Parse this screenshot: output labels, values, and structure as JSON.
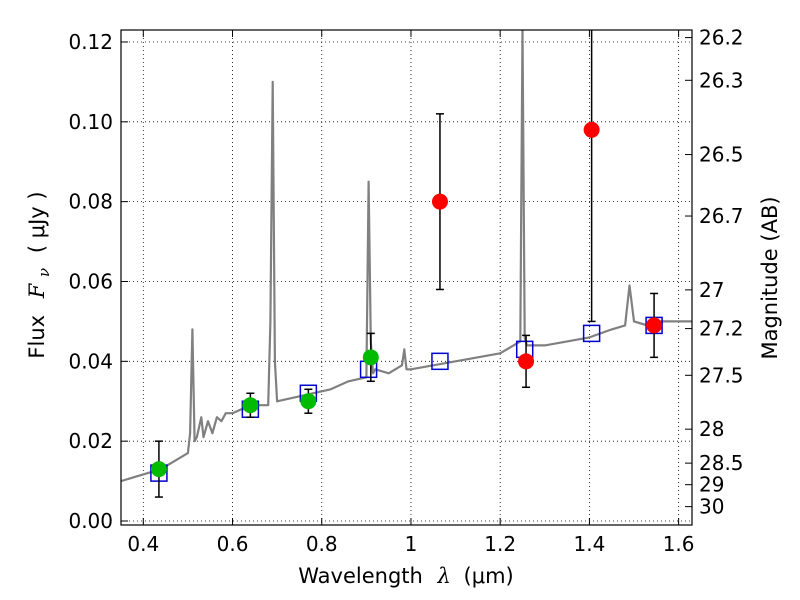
{
  "chart_data": {
    "type": "scatter",
    "xlabel": {
      "prefix": "Wavelength",
      "symbol": "λ",
      "unit": "(μm)"
    },
    "ylabel": {
      "prefix": "Flux",
      "symbol": "F",
      "subscript": "ν",
      "unit": "( μJy )"
    },
    "y2label": "Magnitude (AB)",
    "xlim": [
      0.35,
      1.63
    ],
    "ylim": [
      -0.001,
      0.123
    ],
    "grid": true,
    "x_ticks": [
      {
        "value": 0.4,
        "label": "0.4"
      },
      {
        "value": 0.6,
        "label": "0.6"
      },
      {
        "value": 0.8,
        "label": "0.8"
      },
      {
        "value": 1.0,
        "label": "1"
      },
      {
        "value": 1.2,
        "label": "1.2"
      },
      {
        "value": 1.4,
        "label": "1.4"
      },
      {
        "value": 1.6,
        "label": "1.6"
      }
    ],
    "y_ticks": [
      {
        "value": 0.0,
        "label": "0.00"
      },
      {
        "value": 0.02,
        "label": "0.02"
      },
      {
        "value": 0.04,
        "label": "0.04"
      },
      {
        "value": 0.06,
        "label": "0.06"
      },
      {
        "value": 0.08,
        "label": "0.08"
      },
      {
        "value": 0.1,
        "label": "0.10"
      },
      {
        "value": 0.12,
        "label": "0.12"
      }
    ],
    "y2_ticks": [
      {
        "label": "26.2",
        "flux": 0.1211
      },
      {
        "label": "26.3",
        "flux": 0.1104
      },
      {
        "label": "26.5",
        "flux": 0.0918
      },
      {
        "label": "26.7",
        "flux": 0.0764
      },
      {
        "label": "27",
        "flux": 0.0579
      },
      {
        "label": "27.2",
        "flux": 0.0482
      },
      {
        "label": "27.5",
        "flux": 0.0365
      },
      {
        "label": "28",
        "flux": 0.023
      },
      {
        "label": "28.5",
        "flux": 0.0145
      },
      {
        "label": "29",
        "flux": 0.0091
      },
      {
        "label": "30",
        "flux": 0.0036
      }
    ],
    "series": [
      {
        "kind": "model-spectrum",
        "color": "#808080",
        "x": [
          0.35,
          0.38,
          0.41,
          0.44,
          0.47,
          0.5,
          0.505,
          0.51,
          0.515,
          0.52,
          0.53,
          0.535,
          0.545,
          0.555,
          0.565,
          0.575,
          0.585,
          0.6,
          0.62,
          0.64,
          0.66,
          0.68,
          0.685,
          0.69,
          0.695,
          0.7,
          0.74,
          0.78,
          0.82,
          0.86,
          0.9,
          0.905,
          0.91,
          0.915,
          0.92,
          0.95,
          0.98,
          0.985,
          0.99,
          1.0,
          1.05,
          1.1,
          1.15,
          1.2,
          1.245,
          1.25,
          1.255,
          1.26,
          1.3,
          1.35,
          1.4,
          1.45,
          1.48,
          1.49,
          1.5,
          1.53,
          1.56,
          1.6,
          1.63
        ],
        "y": [
          0.01,
          0.011,
          0.012,
          0.013,
          0.015,
          0.017,
          0.022,
          0.048,
          0.02,
          0.021,
          0.026,
          0.021,
          0.025,
          0.022,
          0.026,
          0.025,
          0.027,
          0.027,
          0.028,
          0.028,
          0.029,
          0.029,
          0.05,
          0.11,
          0.04,
          0.03,
          0.031,
          0.032,
          0.033,
          0.035,
          0.036,
          0.085,
          0.045,
          0.037,
          0.038,
          0.037,
          0.039,
          0.043,
          0.038,
          0.038,
          0.039,
          0.04,
          0.041,
          0.042,
          0.045,
          0.123,
          0.046,
          0.044,
          0.044,
          0.045,
          0.046,
          0.048,
          0.049,
          0.059,
          0.05,
          0.049,
          0.05,
          0.05,
          0.05
        ]
      },
      {
        "kind": "model-bandpass",
        "marker": "open-square",
        "color": "#0000cc",
        "x": [
          0.435,
          0.64,
          0.77,
          0.905,
          1.065,
          1.255,
          1.405,
          1.545
        ],
        "y": [
          0.012,
          0.028,
          0.032,
          0.038,
          0.04,
          0.043,
          0.047,
          0.049
        ]
      },
      {
        "kind": "detections",
        "marker": "filled-circle",
        "color": "#00bb00",
        "x": [
          0.435,
          0.64,
          0.77,
          0.91
        ],
        "y": [
          0.013,
          0.029,
          0.03,
          0.041
        ],
        "err": [
          0.007,
          0.003,
          0.003,
          0.006
        ]
      },
      {
        "kind": "detections",
        "marker": "filled-circle",
        "color": "#ff0000",
        "x": [
          1.065,
          1.258,
          1.405,
          1.545
        ],
        "y": [
          0.08,
          0.04,
          0.098,
          0.049
        ],
        "err": [
          0.022,
          0.0065,
          0.048,
          0.008
        ]
      }
    ]
  }
}
